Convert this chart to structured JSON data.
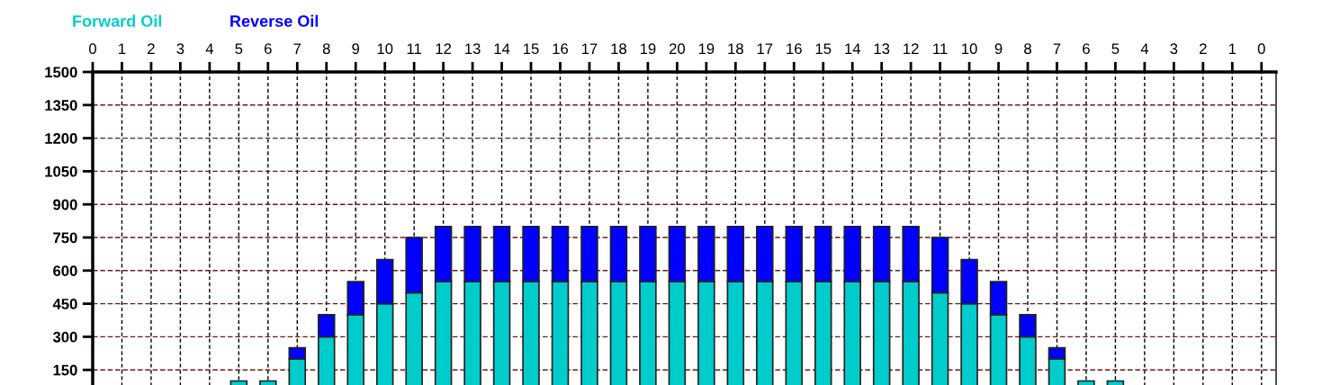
{
  "chart_data": {
    "type": "bar",
    "stacked": true,
    "categories": [
      "0",
      "1",
      "2",
      "3",
      "4",
      "5",
      "6",
      "7",
      "8",
      "9",
      "10",
      "11",
      "12",
      "13",
      "14",
      "15",
      "16",
      "17",
      "18",
      "19",
      "20",
      "19",
      "18",
      "17",
      "16",
      "15",
      "14",
      "13",
      "12",
      "11",
      "10",
      "9",
      "8",
      "7",
      "6",
      "5",
      "4",
      "3",
      "2",
      "1",
      "0"
    ],
    "series": [
      {
        "name": "Forward Oil",
        "color": "#00cccc",
        "values": [
          null,
          null,
          null,
          null,
          null,
          100,
          100,
          200,
          300,
          400,
          450,
          500,
          550,
          550,
          550,
          550,
          550,
          550,
          550,
          550,
          550,
          550,
          550,
          550,
          550,
          550,
          550,
          550,
          550,
          500,
          450,
          400,
          300,
          200,
          100,
          100,
          null,
          null,
          null,
          null,
          null
        ]
      },
      {
        "name": "Reverse Oil",
        "color": "#0000ff",
        "values": [
          null,
          null,
          null,
          null,
          null,
          null,
          null,
          50,
          100,
          150,
          200,
          250,
          250,
          250,
          250,
          250,
          250,
          250,
          250,
          250,
          250,
          250,
          250,
          250,
          250,
          250,
          250,
          250,
          250,
          250,
          200,
          150,
          100,
          50,
          null,
          null,
          null,
          null,
          null,
          null,
          null
        ]
      }
    ],
    "ylim": [
      0,
      1500
    ],
    "yticks": [
      150,
      300,
      450,
      600,
      750,
      900,
      1050,
      1200,
      1350,
      1500
    ],
    "grid": true,
    "legend": "top left"
  }
}
